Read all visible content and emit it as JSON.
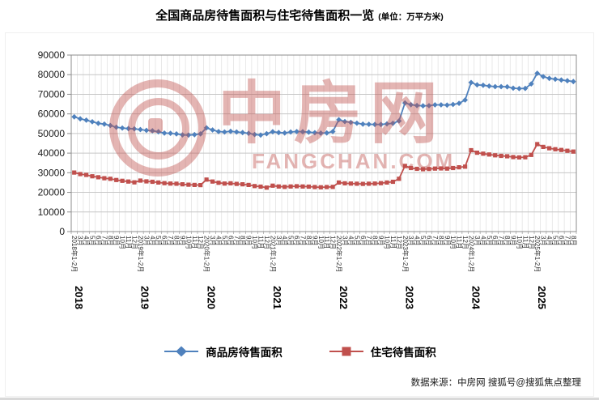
{
  "title": {
    "main": "全国商品房待售面积与住宅待售面积一览",
    "unit": "(单位：万平方米)"
  },
  "watermark": {
    "name": "中房网",
    "domain": "FANGCHAN.COM"
  },
  "source": "数据来源：中房网 搜狐号@搜狐焦点整理",
  "chart_data": {
    "type": "line",
    "title": "全国商品房待售面积与住宅待售面积一览",
    "unit": "万平方米",
    "ylim": [
      0,
      90000
    ],
    "ytick_interval": 10000,
    "grid": true,
    "legend_position": "bottom",
    "years": [
      {
        "label": "2018",
        "months": 11
      },
      {
        "label": "2019",
        "months": 11
      },
      {
        "label": "2020",
        "months": 11
      },
      {
        "label": "2021",
        "months": 11
      },
      {
        "label": "2022",
        "months": 11
      },
      {
        "label": "2023",
        "months": 11
      },
      {
        "label": "2024",
        "months": 11
      },
      {
        "label": "2025",
        "months": 7
      }
    ],
    "categories": [
      "2018年1-2月",
      "3月",
      "4月",
      "5月",
      "6月",
      "7月",
      "8月",
      "9月",
      "10月",
      "11月",
      "12月",
      "2019年1-2月",
      "3月",
      "4月",
      "5月",
      "6月",
      "7月",
      "8月",
      "9月",
      "10月",
      "11月",
      "12月",
      "2020年1-2月",
      "3月",
      "4月",
      "5月",
      "6月",
      "7月",
      "8月",
      "9月",
      "10月",
      "11月",
      "12月",
      "2021年1-2月",
      "3月",
      "4月",
      "5月",
      "6月",
      "7月",
      "8月",
      "9月",
      "10月",
      "11月",
      "12月",
      "2022年1-2月",
      "3月",
      "4月",
      "5月",
      "6月",
      "7月",
      "8月",
      "9月",
      "10月",
      "11月",
      "12月",
      "2023年1-2月",
      "3月",
      "4月",
      "5月",
      "6月",
      "7月",
      "8月",
      "9月",
      "10月",
      "11月",
      "12月",
      "2024年1-2月",
      "3月",
      "4月",
      "5月",
      "6月",
      "7月",
      "8月",
      "9月",
      "10月",
      "11月",
      "12月",
      "2025年1-2月",
      "3月",
      "4月",
      "5月",
      "6月",
      "7月",
      "8月"
    ],
    "series": [
      {
        "name": "商品房待售面积",
        "color": "#4f81bd",
        "marker": "diamond",
        "values": [
          58500,
          57500,
          56800,
          56000,
          55200,
          54800,
          54100,
          53200,
          52800,
          52500,
          52400,
          52000,
          51600,
          51400,
          50900,
          50200,
          50100,
          49800,
          49300,
          49200,
          49400,
          49800,
          52900,
          51800,
          51000,
          50800,
          51100,
          50800,
          50500,
          50100,
          49500,
          49200,
          49900,
          50900,
          50500,
          50300,
          50800,
          51000,
          50900,
          50700,
          50400,
          50200,
          50300,
          51000,
          57000,
          56100,
          55700,
          55300,
          54800,
          54700,
          54600,
          54600,
          54900,
          55200,
          56400,
          65600,
          64700,
          64300,
          64100,
          64200,
          64600,
          64600,
          64500,
          64800,
          65400,
          67100,
          76000,
          74800,
          74600,
          74200,
          73900,
          73900,
          73800,
          73100,
          72900,
          73000,
          75300,
          80700,
          79000,
          78100,
          77700,
          77300,
          76900,
          76500
        ]
      },
      {
        "name": "住宅待售面积",
        "color": "#c0504d",
        "marker": "square",
        "values": [
          30100,
          29300,
          28900,
          28200,
          27700,
          27200,
          26900,
          26300,
          25900,
          25500,
          25100,
          26000,
          25600,
          25400,
          25000,
          24700,
          24500,
          24400,
          24100,
          23900,
          23800,
          23700,
          26500,
          25500,
          24900,
          24500,
          24600,
          24300,
          24100,
          23800,
          23200,
          22900,
          22400,
          23400,
          23000,
          22800,
          23000,
          23100,
          23000,
          22900,
          22700,
          22600,
          22700,
          22800,
          25000,
          24600,
          24500,
          24400,
          24300,
          24400,
          24500,
          24700,
          25000,
          25400,
          26900,
          33500,
          32400,
          32000,
          31800,
          31900,
          32100,
          32200,
          32100,
          32400,
          32800,
          33100,
          41500,
          40200,
          39700,
          39300,
          38900,
          38600,
          38400,
          38000,
          37800,
          37900,
          39100,
          44600,
          43200,
          42500,
          42000,
          41600,
          41200,
          40800
        ]
      }
    ]
  }
}
